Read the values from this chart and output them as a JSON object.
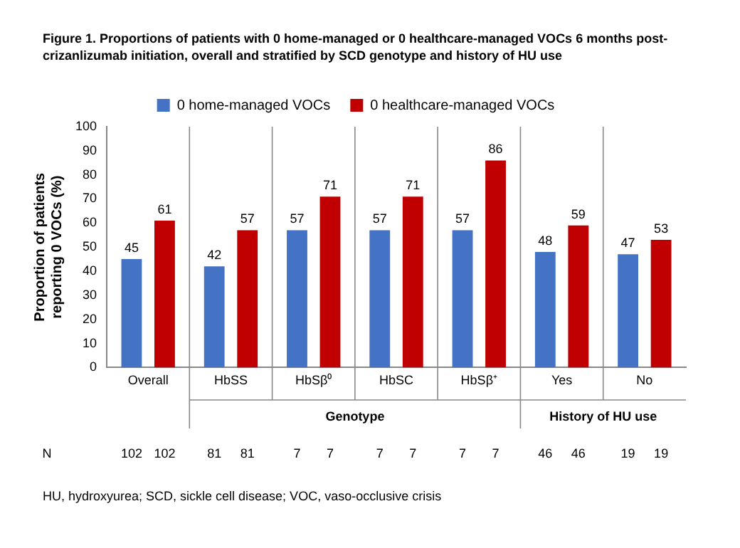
{
  "chart_data": {
    "type": "bar",
    "title": "Figure 1. Proportions of patients with 0 home-managed or 0 healthcare-managed VOCs 6 months post-crizanlizumab initiation, overall and stratified by SCD genotype and history of HU use",
    "ylabel": "Proportion of patients reporting 0 VOCs (%)",
    "categories": [
      "Overall",
      "HbSS",
      "HbSβ⁰",
      "HbSC",
      "HbSβ⁺",
      "Yes",
      "No"
    ],
    "series": [
      {
        "name": "0 home-managed VOCs",
        "color": "#4472c4",
        "values": [
          45,
          42,
          57,
          57,
          57,
          48,
          47
        ]
      },
      {
        "name": "0 healthcare-managed VOCs",
        "color": "#c00000",
        "values": [
          61,
          57,
          71,
          71,
          86,
          59,
          53
        ]
      }
    ],
    "ylim": [
      0,
      100
    ],
    "yticks": [
      0,
      10,
      20,
      30,
      40,
      50,
      60,
      70,
      80,
      90,
      100
    ],
    "grid": false,
    "legend": "top",
    "data_labels": true,
    "annotations": [
      "Genotype",
      "History of HU use",
      "N",
      "102",
      "102",
      "81",
      "81",
      "7",
      "7",
      "7",
      "7",
      "7",
      "7",
      "46",
      "46",
      "19",
      "19",
      "HU, hydroxyurea; SCD, sickle cell disease; VOC, vaso-occlusive crisis"
    ]
  }
}
